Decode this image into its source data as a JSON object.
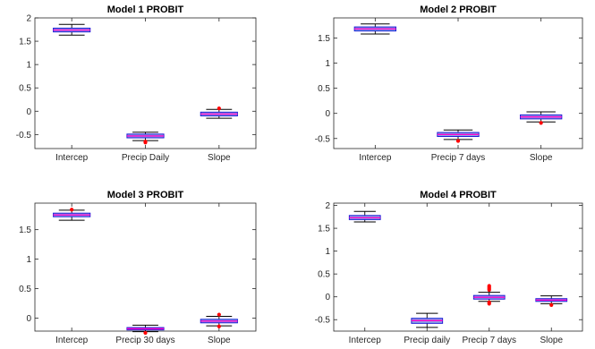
{
  "chart_data": [
    {
      "type": "boxplot",
      "title": "Model 1 PROBIT",
      "categories": [
        "Intercep",
        "Precip Daily",
        "Slope"
      ],
      "ylim": [
        -0.8,
        2.0
      ],
      "yticks": [
        -0.5,
        0,
        0.5,
        1,
        1.5,
        2
      ],
      "yticklabels": [
        "-0.5",
        "0",
        "0.5",
        "1",
        "1.5",
        "2"
      ],
      "grid": false,
      "boxes": [
        {
          "wlo": 1.63,
          "q1": 1.7,
          "median": 1.74,
          "q3": 1.78,
          "whi": 1.86,
          "outliers": []
        },
        {
          "wlo": -0.63,
          "q1": -0.57,
          "median": -0.53,
          "q3": -0.49,
          "whi": -0.45,
          "outliers": [
            -0.67,
            -0.65
          ]
        },
        {
          "wlo": -0.15,
          "q1": -0.1,
          "median": -0.06,
          "q3": -0.02,
          "whi": 0.04,
          "outliers": [
            0.06
          ]
        }
      ]
    },
    {
      "type": "boxplot",
      "title": "Model 2 PROBIT",
      "categories": [
        "Intercep",
        "Precip 7 days",
        "Slope"
      ],
      "ylim": [
        -0.7,
        1.9
      ],
      "yticks": [
        -0.5,
        0,
        0.5,
        1,
        1.5
      ],
      "yticklabels": [
        "-0.5",
        "0",
        "0.5",
        "1",
        "1.5"
      ],
      "grid": false,
      "boxes": [
        {
          "wlo": 1.58,
          "q1": 1.64,
          "median": 1.68,
          "q3": 1.72,
          "whi": 1.78,
          "outliers": []
        },
        {
          "wlo": -0.52,
          "q1": -0.46,
          "median": -0.42,
          "q3": -0.38,
          "whi": -0.33,
          "outliers": [
            -0.55
          ]
        },
        {
          "wlo": -0.17,
          "q1": -0.11,
          "median": -0.07,
          "q3": -0.03,
          "whi": 0.03,
          "outliers": [
            -0.19
          ]
        }
      ]
    },
    {
      "type": "boxplot",
      "title": "Model 3 PROBIT",
      "categories": [
        "Intercep",
        "Precip 30 days",
        "Slope"
      ],
      "ylim": [
        -0.22,
        1.95
      ],
      "yticks": [
        0,
        0.5,
        1,
        1.5
      ],
      "yticklabels": [
        "0",
        "0.5",
        "1",
        "1.5"
      ],
      "grid": false,
      "boxes": [
        {
          "wlo": 1.66,
          "q1": 1.72,
          "median": 1.75,
          "q3": 1.78,
          "whi": 1.83,
          "outliers": [
            1.84
          ]
        },
        {
          "wlo": -0.23,
          "q1": -0.2,
          "median": -0.18,
          "q3": -0.16,
          "whi": -0.12,
          "outliers": [
            -0.25
          ]
        },
        {
          "wlo": -0.13,
          "q1": -0.08,
          "median": -0.05,
          "q3": -0.02,
          "whi": 0.03,
          "outliers": [
            0.06,
            -0.14
          ]
        }
      ]
    },
    {
      "type": "boxplot",
      "title": "Model 4 PROBIT",
      "categories": [
        "Intercep",
        "Precip daily",
        "Precip 7 days",
        "Slope"
      ],
      "ylim": [
        -0.75,
        2.05
      ],
      "yticks": [
        -0.5,
        0,
        0.5,
        1,
        1.5,
        2
      ],
      "yticklabels": [
        "-0.5",
        "0",
        "0.5",
        "1",
        "1.5",
        "2"
      ],
      "grid": false,
      "boxes": [
        {
          "wlo": 1.64,
          "q1": 1.69,
          "median": 1.73,
          "q3": 1.78,
          "whi": 1.87,
          "outliers": []
        },
        {
          "wlo": -0.67,
          "q1": -0.58,
          "median": -0.52,
          "q3": -0.47,
          "whi": -0.36,
          "outliers": []
        },
        {
          "wlo": -0.1,
          "q1": -0.05,
          "median": -0.01,
          "q3": 0.03,
          "whi": 0.1,
          "outliers": [
            0.15,
            0.18,
            0.21,
            0.24,
            -0.12,
            -0.15
          ]
        },
        {
          "wlo": -0.15,
          "q1": -0.1,
          "median": -0.07,
          "q3": -0.04,
          "whi": 0.02,
          "outliers": [
            -0.18
          ]
        }
      ]
    }
  ],
  "colors": {
    "box_fill": "#8fa8e6",
    "box_edge": "#1a1ad6",
    "median": "#ff00cc",
    "whisker": "#000000",
    "outlier": "#ff0000",
    "axes": "#262626"
  }
}
